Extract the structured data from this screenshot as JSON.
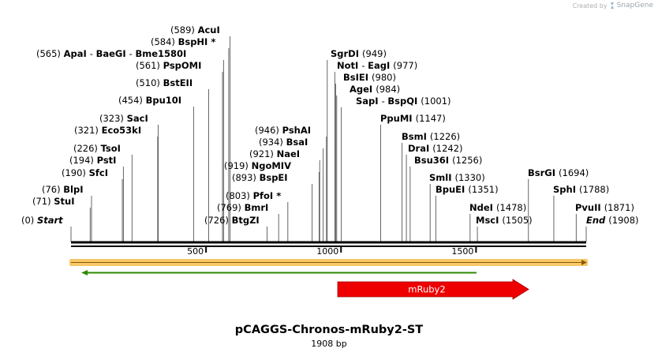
{
  "credit": {
    "prefix": "Created by",
    "brand": "SnapGene"
  },
  "plasmid": {
    "name": "pCAGGS-Chronos-mRuby2-ST",
    "size_label": "1908 bp",
    "length": 1908
  },
  "ticks": [
    "500",
    "1000",
    "1500"
  ],
  "features": {
    "mruby2_label": "mRuby2"
  },
  "colors": {
    "feature_red": "#ee0000",
    "primer_green": "#2e8b00",
    "highlight_orange": "#f5b942"
  },
  "sites": [
    {
      "pos": 0,
      "parts": [
        {
          "t": "(0)",
          "c": "pos"
        },
        {
          "t": "Start",
          "c": "it"
        }
      ]
    },
    {
      "pos": 71,
      "parts": [
        {
          "t": "(71)",
          "c": "pos"
        },
        {
          "t": "StuI",
          "c": "nm"
        }
      ]
    },
    {
      "pos": 76,
      "parts": [
        {
          "t": "(76)",
          "c": "pos"
        },
        {
          "t": "BlpI",
          "c": "nm"
        }
      ]
    },
    {
      "pos": 190,
      "parts": [
        {
          "t": "(190)",
          "c": "pos"
        },
        {
          "t": "SfcI",
          "c": "nm"
        }
      ]
    },
    {
      "pos": 194,
      "parts": [
        {
          "t": "(194)",
          "c": "pos"
        },
        {
          "t": "PstI",
          "c": "nm"
        }
      ]
    },
    {
      "pos": 226,
      "parts": [
        {
          "t": "(226)",
          "c": "pos"
        },
        {
          "t": "TsoI",
          "c": "nm"
        }
      ]
    },
    {
      "pos": 321,
      "parts": [
        {
          "t": "(321)",
          "c": "pos"
        },
        {
          "t": "Eco53kI",
          "c": "nm"
        }
      ]
    },
    {
      "pos": 323,
      "parts": [
        {
          "t": "(323)",
          "c": "pos"
        },
        {
          "t": "SacI",
          "c": "nm"
        }
      ]
    },
    {
      "pos": 454,
      "parts": [
        {
          "t": "(454)",
          "c": "pos"
        },
        {
          "t": "Bpu10I",
          "c": "nm"
        }
      ]
    },
    {
      "pos": 510,
      "parts": [
        {
          "t": "(510)",
          "c": "pos"
        },
        {
          "t": "BstEII",
          "c": "nm"
        }
      ]
    },
    {
      "pos": 561,
      "parts": [
        {
          "t": "(561)",
          "c": "pos"
        },
        {
          "t": "PspOMI",
          "c": "nm"
        }
      ]
    },
    {
      "pos": 565,
      "parts": [
        {
          "t": "(565)",
          "c": "pos"
        },
        {
          "t": "ApaI",
          "c": "nm"
        },
        {
          "t": "-",
          "c": "pos"
        },
        {
          "t": "BaeGI",
          "c": "nm"
        },
        {
          "t": "-",
          "c": "pos"
        },
        {
          "t": "Bme1580I",
          "c": "nm"
        }
      ]
    },
    {
      "pos": 584,
      "parts": [
        {
          "t": "(584)",
          "c": "pos"
        },
        {
          "t": "BspHI *",
          "c": "nm"
        }
      ]
    },
    {
      "pos": 589,
      "parts": [
        {
          "t": "(589)",
          "c": "pos"
        },
        {
          "t": "AcuI",
          "c": "nm"
        }
      ]
    },
    {
      "pos": 726,
      "parts": [
        {
          "t": "(726)",
          "c": "pos"
        },
        {
          "t": "BtgZI",
          "c": "nm"
        }
      ]
    },
    {
      "pos": 769,
      "parts": [
        {
          "t": "(769)",
          "c": "pos"
        },
        {
          "t": "BmrI",
          "c": "nm"
        }
      ]
    },
    {
      "pos": 803,
      "parts": [
        {
          "t": "(803)",
          "c": "pos"
        },
        {
          "t": "PfoI *",
          "c": "nm"
        }
      ]
    },
    {
      "pos": 893,
      "parts": [
        {
          "t": "(893)",
          "c": "pos"
        },
        {
          "t": "BspEI",
          "c": "nm"
        }
      ]
    },
    {
      "pos": 919,
      "parts": [
        {
          "t": "(919)",
          "c": "pos"
        },
        {
          "t": "NgoMIV",
          "c": "nm"
        }
      ]
    },
    {
      "pos": 921,
      "parts": [
        {
          "t": "(921)",
          "c": "pos"
        },
        {
          "t": "NaeI",
          "c": "nm"
        }
      ]
    },
    {
      "pos": 934,
      "parts": [
        {
          "t": "(934)",
          "c": "pos"
        },
        {
          "t": "BsaI",
          "c": "nm"
        }
      ]
    },
    {
      "pos": 946,
      "parts": [
        {
          "t": "(946)",
          "c": "pos"
        },
        {
          "t": "PshAI",
          "c": "nm"
        }
      ]
    },
    {
      "pos": 949,
      "parts": [
        {
          "t": "SgrDI",
          "c": "nm"
        },
        {
          "t": "(949)",
          "c": "pos"
        }
      ]
    },
    {
      "pos": 977,
      "parts": [
        {
          "t": "NotI",
          "c": "nm"
        },
        {
          "t": "-",
          "c": "pos"
        },
        {
          "t": "EagI",
          "c": "nm"
        },
        {
          "t": "(977)",
          "c": "pos"
        }
      ]
    },
    {
      "pos": 980,
      "parts": [
        {
          "t": "BsIEI",
          "c": "nm"
        },
        {
          "t": "(980)",
          "c": "pos"
        }
      ]
    },
    {
      "pos": 984,
      "parts": [
        {
          "t": "AgeI",
          "c": "nm"
        },
        {
          "t": "(984)",
          "c": "pos"
        }
      ]
    },
    {
      "pos": 1001,
      "parts": [
        {
          "t": "SapI",
          "c": "nm"
        },
        {
          "t": "-",
          "c": "pos"
        },
        {
          "t": "BspQI",
          "c": "nm"
        },
        {
          "t": "(1001)",
          "c": "pos"
        }
      ]
    },
    {
      "pos": 1147,
      "parts": [
        {
          "t": "PpuMI",
          "c": "nm"
        },
        {
          "t": "(1147)",
          "c": "pos"
        }
      ]
    },
    {
      "pos": 1226,
      "parts": [
        {
          "t": "BsmI",
          "c": "nm"
        },
        {
          "t": "(1226)",
          "c": "pos"
        }
      ]
    },
    {
      "pos": 1242,
      "parts": [
        {
          "t": "DraI",
          "c": "nm"
        },
        {
          "t": "(1242)",
          "c": "pos"
        }
      ]
    },
    {
      "pos": 1256,
      "parts": [
        {
          "t": "Bsu36I",
          "c": "nm"
        },
        {
          "t": "(1256)",
          "c": "pos"
        }
      ]
    },
    {
      "pos": 1330,
      "parts": [
        {
          "t": "SmlI",
          "c": "nm"
        },
        {
          "t": "(1330)",
          "c": "pos"
        }
      ]
    },
    {
      "pos": 1351,
      "parts": [
        {
          "t": "BpuEI",
          "c": "nm"
        },
        {
          "t": "(1351)",
          "c": "pos"
        }
      ]
    },
    {
      "pos": 1478,
      "parts": [
        {
          "t": "NdeI",
          "c": "nm"
        },
        {
          "t": "(1478)",
          "c": "pos"
        }
      ]
    },
    {
      "pos": 1505,
      "parts": [
        {
          "t": "MscI",
          "c": "nm"
        },
        {
          "t": "(1505)",
          "c": "pos"
        }
      ]
    },
    {
      "pos": 1694,
      "parts": [
        {
          "t": "BsrGI",
          "c": "nm"
        },
        {
          "t": "(1694)",
          "c": "pos"
        }
      ]
    },
    {
      "pos": 1788,
      "parts": [
        {
          "t": "SphI",
          "c": "nm"
        },
        {
          "t": "(1788)",
          "c": "pos"
        }
      ]
    },
    {
      "pos": 1871,
      "parts": [
        {
          "t": "PvuII",
          "c": "nm"
        },
        {
          "t": "(1871)",
          "c": "pos"
        }
      ]
    },
    {
      "pos": 1908,
      "parts": [
        {
          "t": "End",
          "c": "it"
        },
        {
          "t": "(1908)",
          "c": "pos"
        }
      ]
    }
  ]
}
